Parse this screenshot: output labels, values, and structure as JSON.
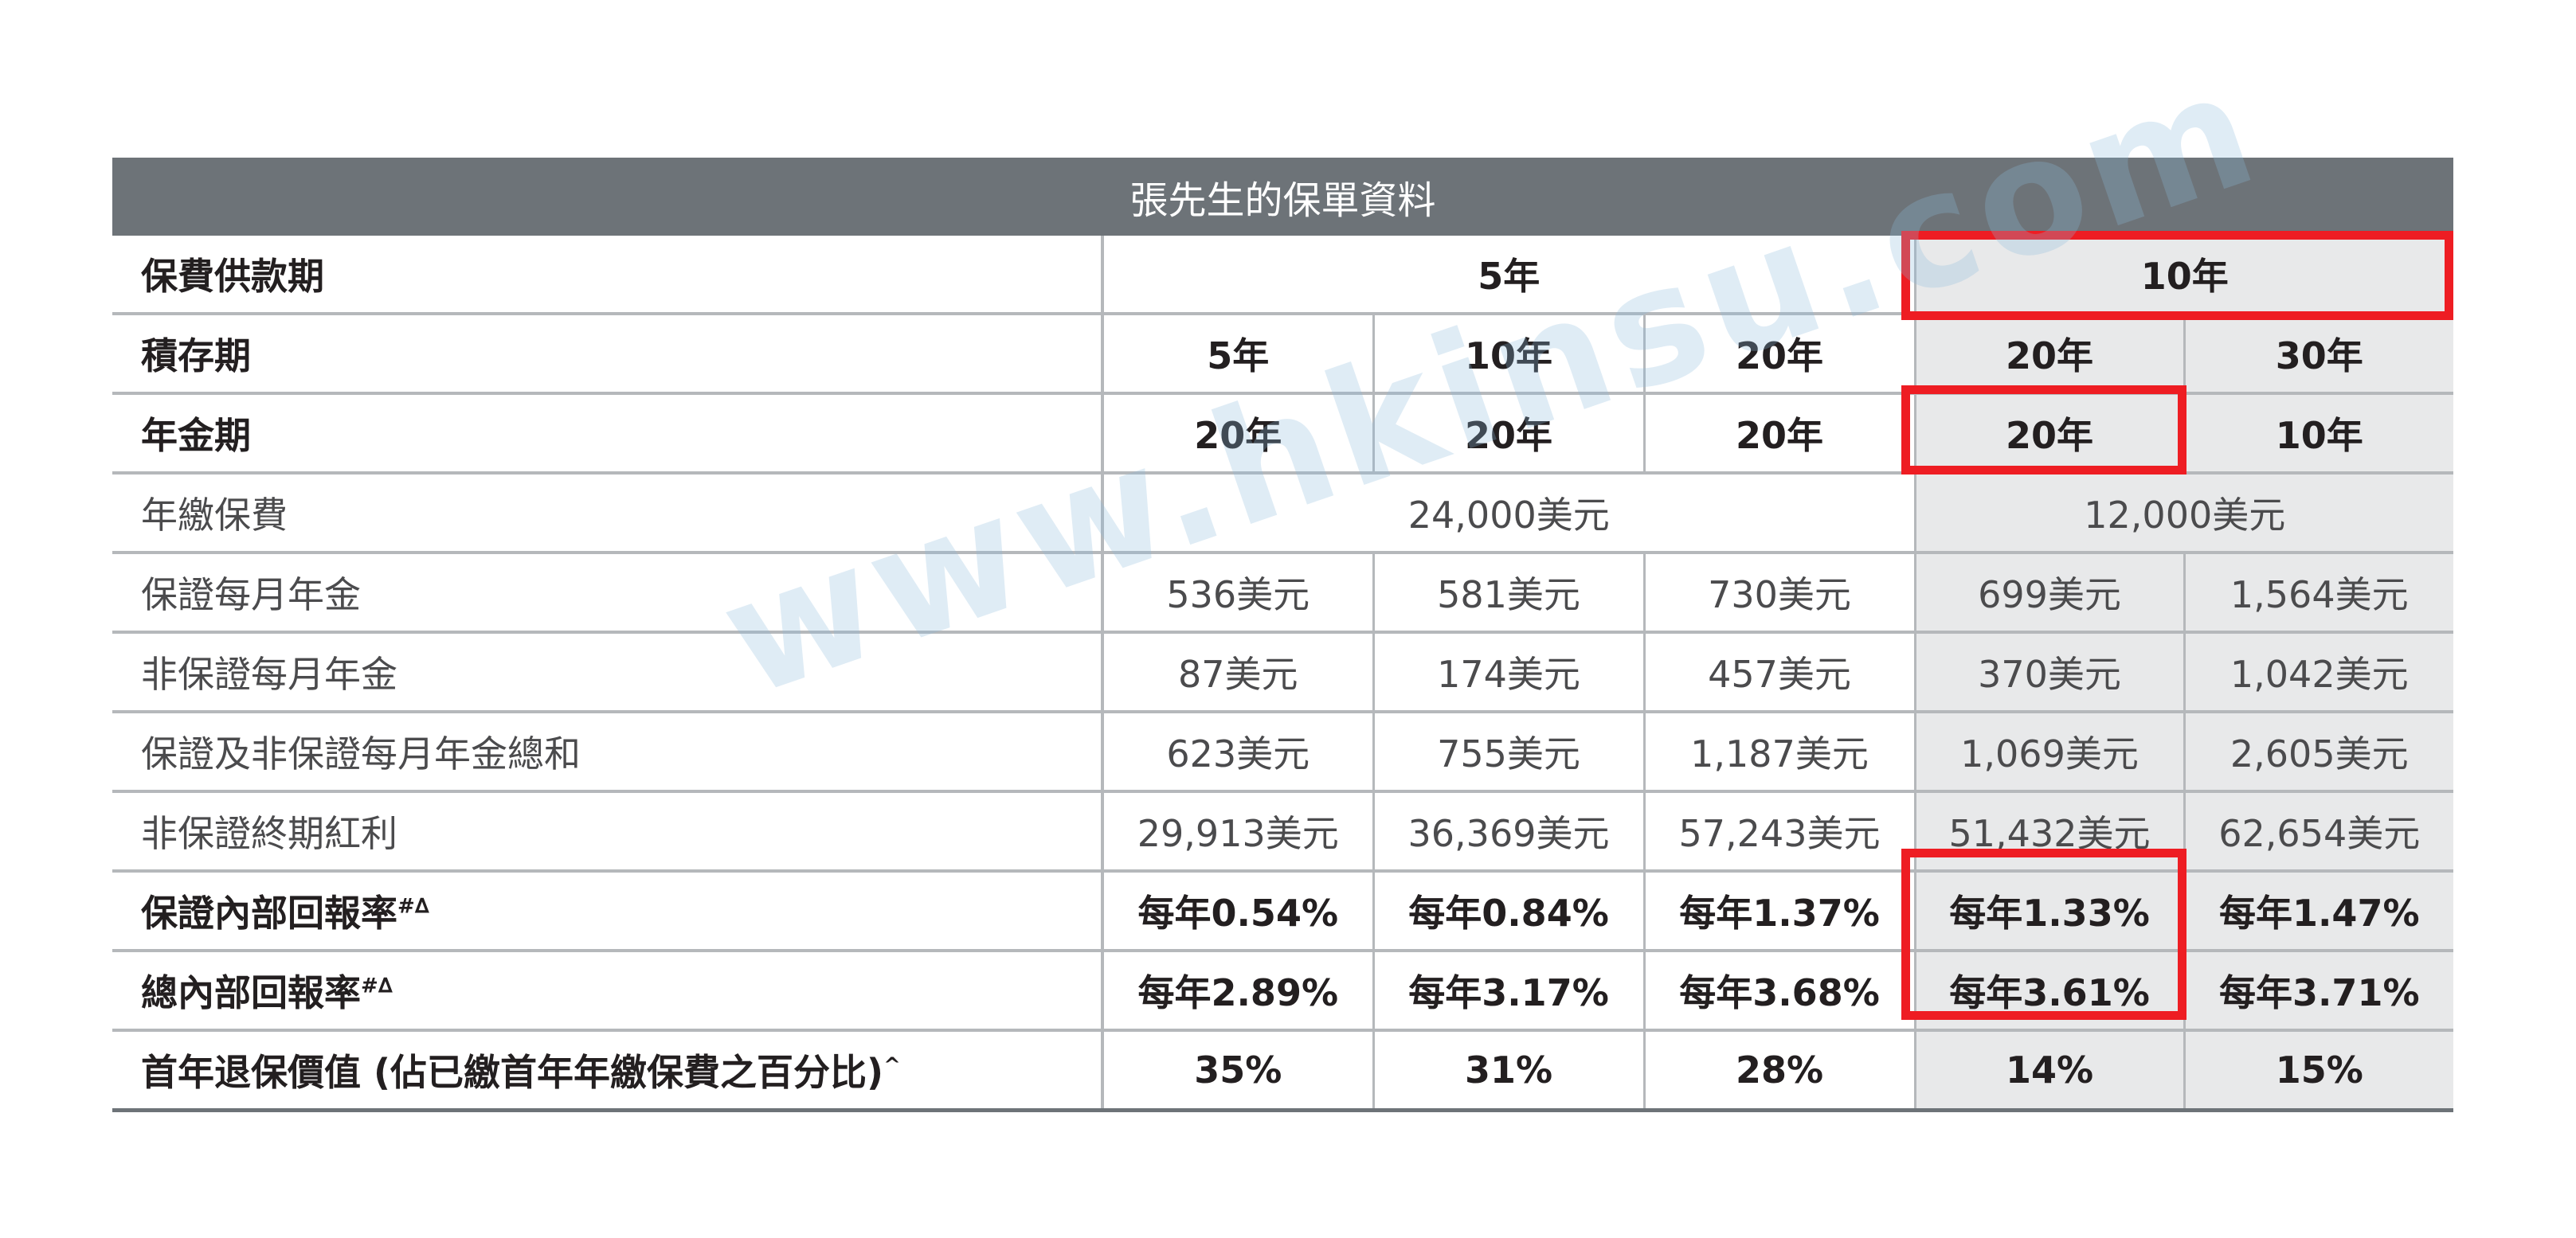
{
  "title": "張先生的保單資料",
  "rows": {
    "payment_period": {
      "label": "保費供款期",
      "groups": [
        "5年",
        "10年"
      ]
    },
    "accumulation_period": {
      "label": "積存期",
      "values": [
        "5年",
        "10年",
        "20年",
        "20年",
        "30年"
      ]
    },
    "annuity_period": {
      "label": "年金期",
      "values": [
        "20年",
        "20年",
        "20年",
        "20年",
        "10年"
      ]
    },
    "annual_premium": {
      "label": "年繳保費",
      "groups": [
        "24,000美元",
        "12,000美元"
      ]
    },
    "guaranteed_monthly": {
      "label": "保證每月年金",
      "values": [
        "536美元",
        "581美元",
        "730美元",
        "699美元",
        "1,564美元"
      ]
    },
    "non_guaranteed_monthly": {
      "label": "非保證每月年金",
      "values": [
        "87美元",
        "174美元",
        "457美元",
        "370美元",
        "1,042美元"
      ]
    },
    "total_monthly": {
      "label": "保證及非保證每月年金總和",
      "values": [
        "623美元",
        "755美元",
        "1,187美元",
        "1,069美元",
        "2,605美元"
      ]
    },
    "terminal_bonus": {
      "label": "非保證終期紅利",
      "values": [
        "29,913美元",
        "36,369美元",
        "57,243美元",
        "51,432美元",
        "62,654美元"
      ]
    },
    "guaranteed_irr": {
      "label": "保證內部回報率",
      "sup": "#∆",
      "values": [
        "每年0.54%",
        "每年0.84%",
        "每年1.37%",
        "每年1.33%",
        "每年1.47%"
      ]
    },
    "total_irr": {
      "label": "總內部回報率",
      "sup": "#∆",
      "values": [
        "每年2.89%",
        "每年3.17%",
        "每年3.68%",
        "每年3.61%",
        "每年3.71%"
      ]
    },
    "surrender_value": {
      "label": "首年退保價值 (佔已繳首年年繳保費之百分比)",
      "sup": "^",
      "values": [
        "35%",
        "31%",
        "28%",
        "14%",
        "15%"
      ]
    }
  },
  "watermark": "www.hkinsu.com",
  "colors": {
    "header_bg": "#6d7378",
    "shade": "#e8e9ea",
    "highlight": "#ee1d23"
  }
}
